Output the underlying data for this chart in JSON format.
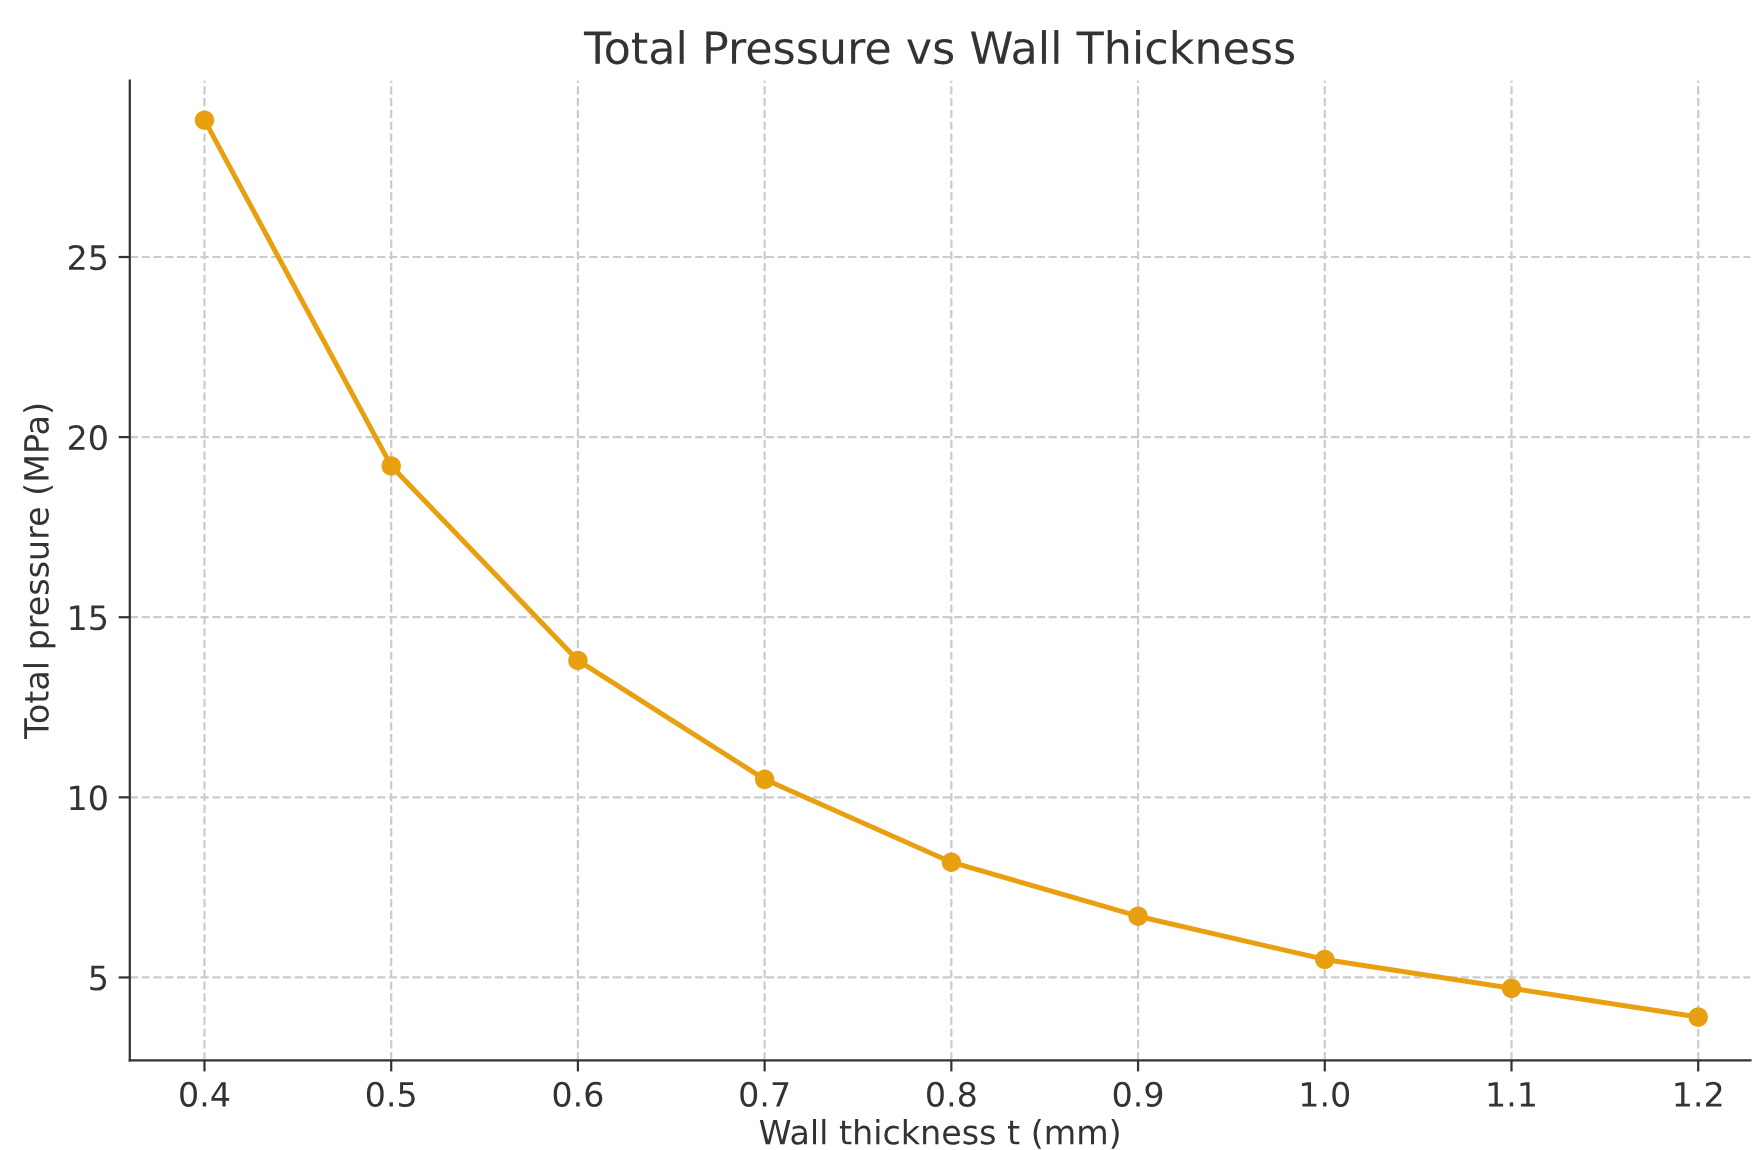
{
  "chart_data": {
    "type": "line",
    "title": "Total Pressure vs Wall Thickness",
    "xlabel": "Wall thickness t (mm)",
    "ylabel": "Total pressure (MPa)",
    "x": [
      0.4,
      0.5,
      0.6,
      0.7,
      0.8,
      0.9,
      1.0,
      1.1,
      1.2
    ],
    "series": [
      {
        "color": "#e8a010",
        "values": [
          28.8,
          19.2,
          13.8,
          10.5,
          8.2,
          6.7,
          5.5,
          4.7,
          3.9
        ]
      }
    ],
    "xlim": [
      0.36,
      1.228
    ],
    "ylim": [
      2.7,
      29.9
    ],
    "xticks": [
      {
        "value": 0.4,
        "label": "0.4"
      },
      {
        "value": 0.5,
        "label": "0.5"
      },
      {
        "value": 0.6,
        "label": "0.6"
      },
      {
        "value": 0.7,
        "label": "0.7"
      },
      {
        "value": 0.8,
        "label": "0.8"
      },
      {
        "value": 0.9,
        "label": "0.9"
      },
      {
        "value": 1.0,
        "label": "1.0"
      },
      {
        "value": 1.1,
        "label": "1.1"
      },
      {
        "value": 1.2,
        "label": "1.2"
      }
    ],
    "yticks": [
      5,
      10,
      15,
      20,
      25
    ],
    "grid": true,
    "marker": "circle",
    "line_style": "solid"
  }
}
